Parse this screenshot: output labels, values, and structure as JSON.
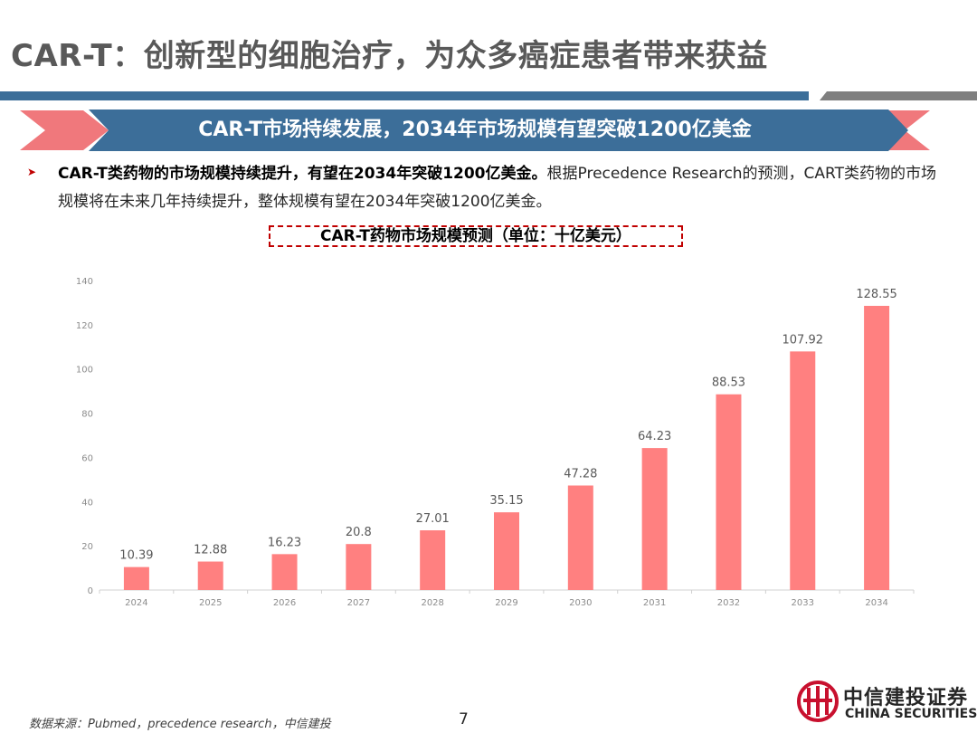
{
  "slide": {
    "title": "CAR-T：创新型的细胞治疗，为众多癌症患者带来获益",
    "banner": "CAR-T市场持续发展，2034年市场规模有望突破1200亿美金",
    "bullet_bold": "CAR-T类药物的市场规模持续提升，有望在2034年突破1200亿美金。",
    "bullet_text": "根据Precedence Research的预测，CART类药物的市场规模将在未来几年持续提升，整体规模有望在2034年突破1200亿美金。",
    "source": "数据来源：Pubmed，precedence research，中信建投",
    "page_number": "7",
    "logo_cn": "中信建投证券",
    "logo_en": "CHINA SECURITIES"
  },
  "colors": {
    "title_gray": "#595959",
    "header_blue": "#3c6e99",
    "accent_pink": "#f0787c",
    "bar": "#ff8080",
    "dashed_border": "#c00000",
    "logo_red": "#c8102e"
  },
  "chart_data": {
    "type": "bar",
    "title": "CAR-T药物市场规模预测（单位：十亿美元）",
    "categories": [
      "2024",
      "2025",
      "2026",
      "2027",
      "2028",
      "2029",
      "2030",
      "2031",
      "2032",
      "2033",
      "2034"
    ],
    "values": [
      10.39,
      12.88,
      16.23,
      20.8,
      27.01,
      35.15,
      47.28,
      64.23,
      88.53,
      107.92,
      128.55
    ],
    "value_labels": [
      "10.39",
      "12.88",
      "16.23",
      "20.8",
      "27.01",
      "35.15",
      "47.28",
      "64.23",
      "88.53",
      "107.92",
      "128.55"
    ],
    "ylim": [
      0,
      140
    ],
    "yticks": [
      0,
      20,
      40,
      60,
      80,
      100,
      120,
      140
    ],
    "xlabel": "",
    "ylabel": "",
    "grid": false,
    "legend": "none"
  }
}
